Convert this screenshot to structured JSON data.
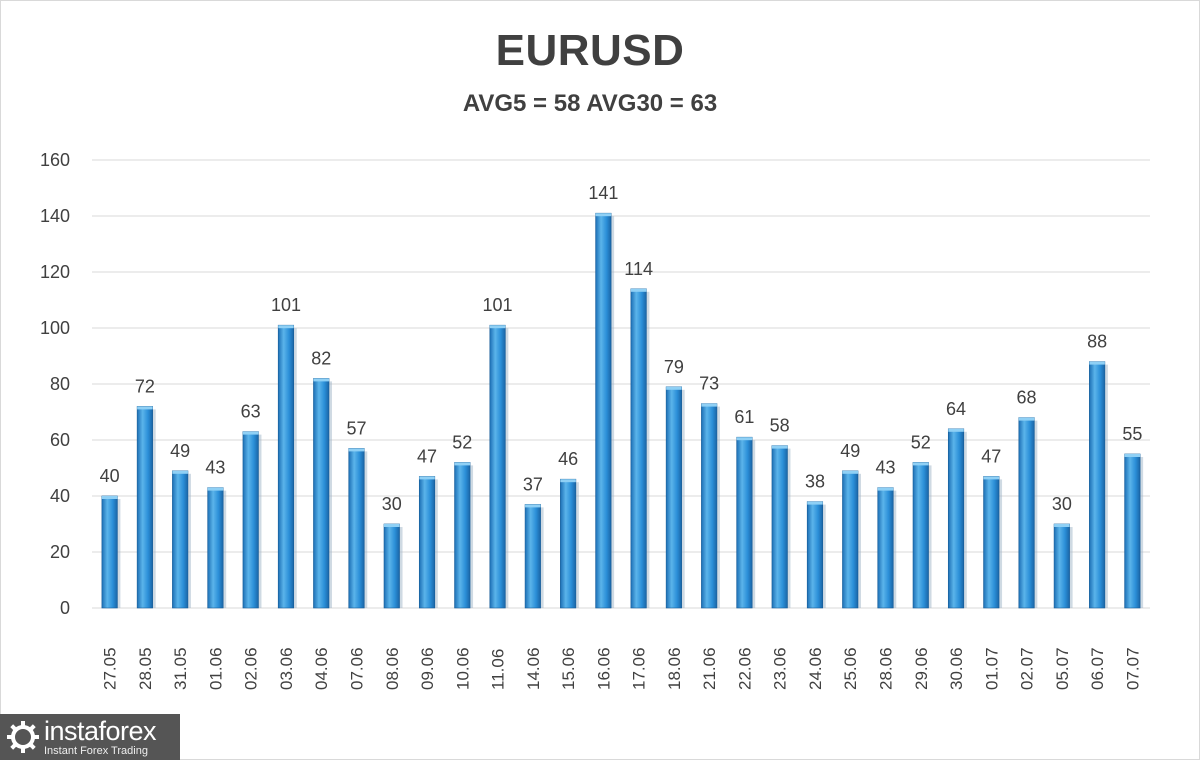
{
  "title": "EURUSD",
  "subtitle": "AVG5 = 58 AVG30 = 63",
  "logo": {
    "name": "instaforex",
    "tagline": "Instant Forex Trading"
  },
  "colors": {
    "bar_top": "#5bb4ea",
    "bar_mid": "#2b8fd8",
    "bar_bottom": "#1c6fb5",
    "grid": "#d9d9d9",
    "text": "#404040"
  },
  "chart_data": {
    "type": "bar",
    "title": "EURUSD",
    "subtitle": "AVG5 = 58 AVG30 = 63",
    "xlabel": "",
    "ylabel": "",
    "ylim": [
      0,
      160
    ],
    "yticks": [
      0,
      20,
      40,
      60,
      80,
      100,
      120,
      140,
      160
    ],
    "grid": true,
    "legend": "none",
    "categories": [
      "27.05",
      "28.05",
      "31.05",
      "01.06",
      "02.06",
      "03.06",
      "04.06",
      "07.06",
      "08.06",
      "09.06",
      "10.06",
      "11.06",
      "14.06",
      "15.06",
      "16.06",
      "17.06",
      "18.06",
      "21.06",
      "22.06",
      "23.06",
      "24.06",
      "25.06",
      "28.06",
      "29.06",
      "30.06",
      "01.07",
      "02.07",
      "05.07",
      "06.07",
      "07.07"
    ],
    "values": [
      40,
      72,
      49,
      43,
      63,
      101,
      82,
      57,
      30,
      47,
      52,
      101,
      37,
      46,
      141,
      114,
      79,
      73,
      61,
      58,
      38,
      49,
      43,
      52,
      64,
      47,
      68,
      30,
      88,
      55
    ]
  }
}
